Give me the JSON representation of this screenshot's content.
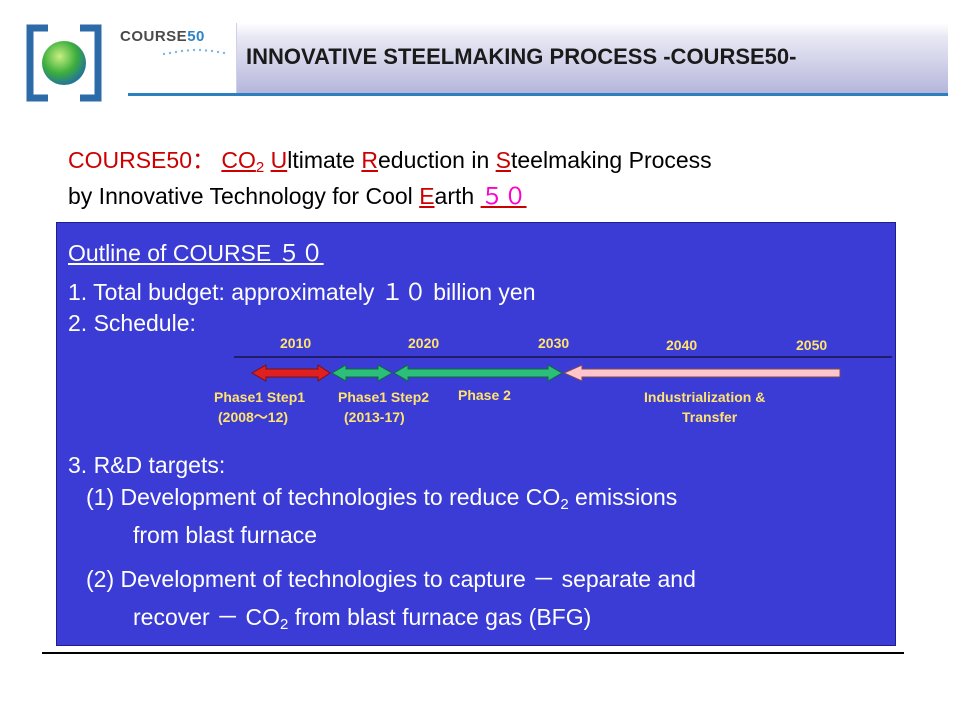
{
  "header": {
    "wordmark_text": "COURSE",
    "wordmark_number": "50",
    "title": "INNOVATIVE STEELMAKING PROCESS -COURSE50-"
  },
  "definition": {
    "prefix": "COURSE50：",
    "co": "CO",
    "co_sub": "2",
    "u": "U",
    "ultimate_rest": "ltimate",
    "r": "R",
    "reduction_rest": "eduction in",
    "s": "S",
    "steelmaking_rest": "teelmaking Process",
    "line2_text": "by Innovative Technology for Cool",
    "e": "E",
    "earth_rest": "arth",
    "fifty": "５０"
  },
  "outline": {
    "heading": "Outline of COURSE ５０",
    "item1": "1. Total budget: approximately １０ billion yen",
    "item2": "2. Schedule:",
    "item3": "3. R&D targets:",
    "sub1_line1_pre": "(1) Development of technologies to reduce CO",
    "sub1_line1_sub": "2",
    "sub1_line1_post": " emissions",
    "sub1_line2": "from blast furnace",
    "sub2_line1": "(2) Development of technologies to capture － separate and",
    "sub2_line2_pre": "recover － CO",
    "sub2_line2_sub": "2",
    "sub2_line2_post": " from blast furnace gas (BFG)"
  },
  "timeline": {
    "years": [
      "2010",
      "2020",
      "2030",
      "2040",
      "2050"
    ],
    "phases": [
      {
        "label": "Phase1 Step1",
        "sub": "(2008～12)",
        "color": "#e02020"
      },
      {
        "label": "Phase1 Step2",
        "sub": "(2013-17)",
        "color": "#2bbf7a"
      },
      {
        "label": "Phase 2",
        "sub": "",
        "color": "#2bbf7a"
      },
      {
        "label": "Industrialization &",
        "sub": "Transfer",
        "color": "#ffc4cc"
      }
    ]
  },
  "colors": {
    "box_blue": "#3b3bd6",
    "accent_blue": "#2d80c0",
    "label_yellow": "#ffe36e",
    "highlight_red": "#cc0000",
    "highlight_magenta": "#ff00cc"
  }
}
